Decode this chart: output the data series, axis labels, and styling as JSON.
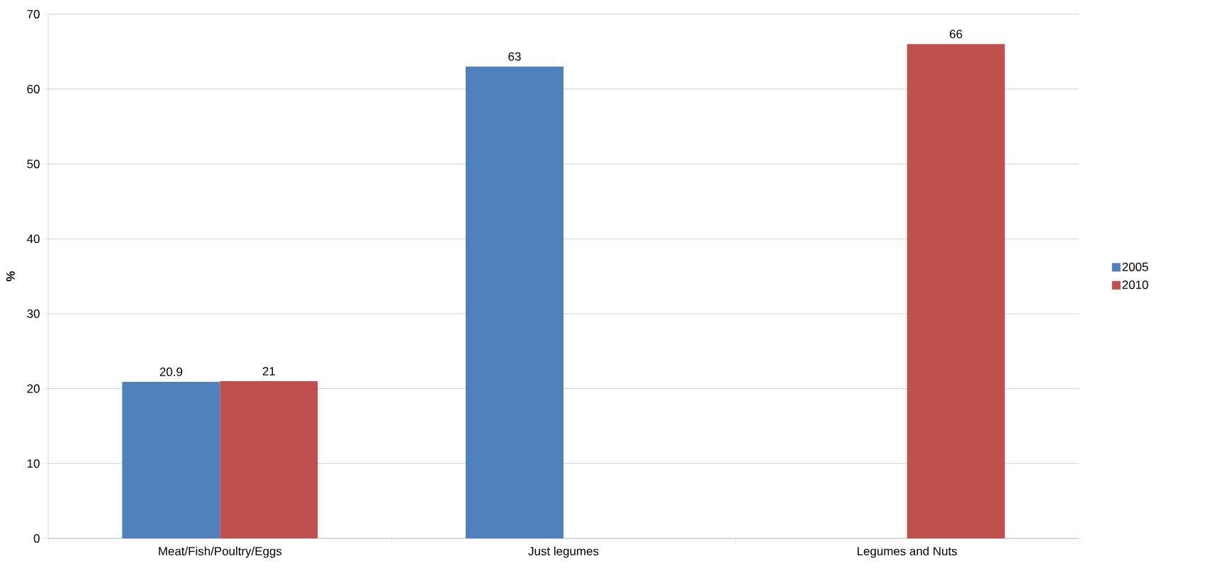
{
  "chart_data": {
    "type": "bar",
    "ylabel": "%",
    "categories": [
      "Meat/Fish/Poultry/Eggs",
      "Just legumes",
      "Legumes and Nuts"
    ],
    "series": [
      {
        "name": "2005",
        "color": "#4f81bd",
        "values": [
          20.9,
          63,
          null
        ]
      },
      {
        "name": "2010",
        "color": "#c0504d",
        "values": [
          21,
          null,
          66
        ]
      }
    ],
    "ylim": [
      0,
      70
    ],
    "yticks": [
      0,
      10,
      20,
      30,
      40,
      50,
      60,
      70
    ],
    "grid": "y",
    "legend": "right",
    "data_labels": true
  }
}
